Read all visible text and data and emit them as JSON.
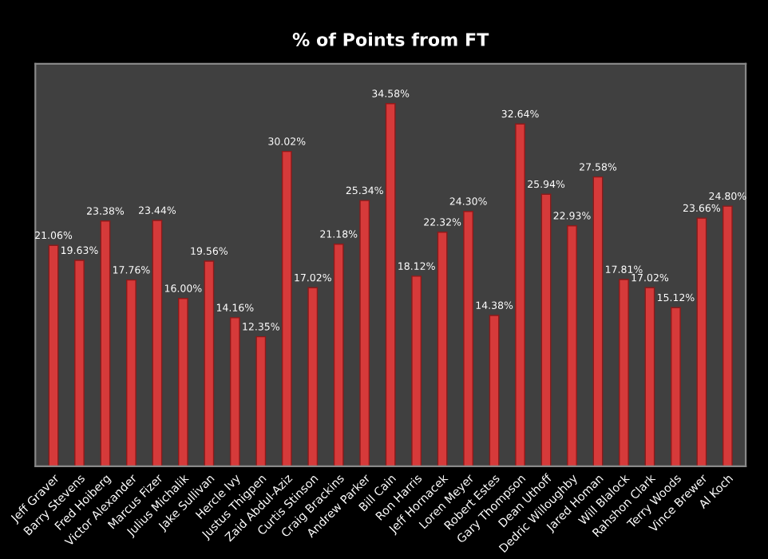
{
  "chart_data": {
    "type": "bar",
    "title": "% of Points from FT",
    "categories": [
      "Jeff Graver",
      "Barry Stevens",
      "Fred Hoiberg",
      "Victor Alexander",
      "Marcus Fizer",
      "Julius Michalik",
      "Jake Sullivan",
      "Hercle Ivy",
      "Justus Thigpen",
      "Zaid Abdul-Aziz",
      "Curtis Stinson",
      "Craig Brackins",
      "Andrew Parker",
      "Bill Cain",
      "Ron Harris",
      "Jeff Hornacek",
      "Loren Meyer",
      "Robert Estes",
      "Gary Thompson",
      "Dean Uthoff",
      "Dedric Willoughby",
      "Jared Homan",
      "Will Blalock",
      "Rahshon Clark",
      "Terry Woods",
      "Vince Brewer",
      "Al Koch"
    ],
    "values": [
      21.06,
      19.63,
      23.38,
      17.76,
      23.44,
      16.0,
      19.56,
      14.16,
      12.35,
      30.02,
      17.02,
      21.18,
      25.34,
      34.58,
      18.12,
      22.32,
      24.3,
      14.38,
      32.64,
      25.94,
      22.93,
      27.58,
      17.81,
      17.02,
      15.12,
      23.66,
      24.8
    ],
    "value_labels": [
      "21.06%",
      "19.63%",
      "23.38%",
      "17.76%",
      "23.44%",
      "16.00%",
      "19.56%",
      "14.16%",
      "12.35%",
      "30.02%",
      "17.02%",
      "21.18%",
      "25.34%",
      "34.58%",
      "18.12%",
      "22.32%",
      "24.30%",
      "14.38%",
      "32.64%",
      "25.94%",
      "22.93%",
      "27.58%",
      "17.81%",
      "17.02%",
      "15.12%",
      "23.66%",
      "24.80%"
    ],
    "color": "#d63a3a",
    "grid": false,
    "legend": false
  }
}
